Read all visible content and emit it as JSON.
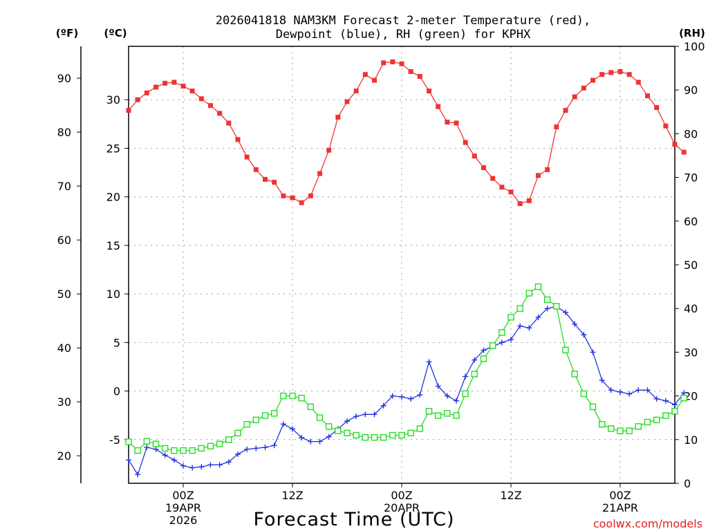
{
  "chart_data": {
    "type": "line",
    "title": [
      "2026041818 NAM3KM Forecast 2-meter Temperature (red),",
      "Dewpoint (blue), RH (green) for KPHX"
    ],
    "xlabel": "Forecast Time (UTC)",
    "watermark": "coolwx.com/models",
    "x_unit": "hours since 2026-04-18 18Z",
    "xlim": [
      0,
      60
    ],
    "x_ticks": [
      {
        "hour": 6,
        "lines": [
          "00Z",
          "19APR",
          "2026"
        ]
      },
      {
        "hour": 18,
        "lines": [
          "12Z"
        ]
      },
      {
        "hour": 30,
        "lines": [
          "00Z",
          "20APR"
        ]
      },
      {
        "hour": 42,
        "lines": [
          "12Z"
        ]
      },
      {
        "hour": 54,
        "lines": [
          "00Z",
          "21APR"
        ]
      }
    ],
    "axes": {
      "celsius": {
        "label": "(ºC)",
        "range": [
          -9.5,
          35.5
        ],
        "ticks": [
          -5,
          0,
          5,
          10,
          15,
          20,
          25,
          30
        ]
      },
      "fahrenheit": {
        "label": "(ºF)",
        "range": [
          14.9,
          95.9
        ],
        "ticks": [
          20,
          30,
          40,
          50,
          60,
          70,
          80,
          90
        ]
      },
      "rh": {
        "label": "(RH)",
        "range": [
          0,
          100
        ],
        "ticks": [
          0,
          10,
          20,
          30,
          40,
          50,
          60,
          70,
          80,
          90,
          100
        ]
      }
    },
    "series": [
      {
        "name": "Temperature (°C)",
        "color": "#ee3333",
        "marker": "filled-square",
        "axis": "celsius",
        "values": [
          28.9,
          30.0,
          30.7,
          31.3,
          31.7,
          31.8,
          31.4,
          30.9,
          30.1,
          29.4,
          28.6,
          27.6,
          25.9,
          24.1,
          22.8,
          21.8,
          21.5,
          20.1,
          19.9,
          19.4,
          20.1,
          22.4,
          24.8,
          28.2,
          29.8,
          30.9,
          32.6,
          32.0,
          33.8,
          33.9,
          33.7,
          32.9,
          32.4,
          30.9,
          29.3,
          27.7,
          27.6,
          25.6,
          24.2,
          23.0,
          21.9,
          21.0,
          20.5,
          19.3,
          19.6,
          22.2,
          22.8,
          27.2,
          28.9,
          30.3,
          31.2,
          32.0,
          32.6,
          32.8,
          32.9,
          32.6,
          31.8,
          30.4,
          29.2,
          27.3,
          25.4,
          24.6
        ]
      },
      {
        "name": "Dewpoint (°C)",
        "color": "#2233dd",
        "marker": "plus",
        "axis": "celsius",
        "values": [
          -7.1,
          -8.6,
          -5.8,
          -6.0,
          -6.6,
          -7.1,
          -7.7,
          -7.9,
          -7.8,
          -7.6,
          -7.6,
          -7.3,
          -6.5,
          -6.0,
          -5.9,
          -5.8,
          -5.6,
          -3.4,
          -3.9,
          -4.8,
          -5.2,
          -5.2,
          -4.7,
          -3.9,
          -3.1,
          -2.6,
          -2.4,
          -2.4,
          -1.5,
          -0.5,
          -0.6,
          -0.8,
          -0.4,
          3.0,
          0.5,
          -0.5,
          -1.0,
          1.5,
          3.2,
          4.2,
          4.6,
          5.0,
          5.3,
          6.7,
          6.5,
          7.6,
          8.5,
          8.7,
          8.1,
          6.9,
          5.8,
          4.0,
          1.1,
          0.1,
          -0.1,
          -0.3,
          0.1,
          0.1,
          -0.8,
          -1.0,
          -1.4,
          -0.2
        ]
      },
      {
        "name": "Relative Humidity (%)",
        "color": "#22dd22",
        "marker": "open-square",
        "axis": "rh",
        "values": [
          9.5,
          7.5,
          9.6,
          9.0,
          8.0,
          7.5,
          7.5,
          7.5,
          8.0,
          8.5,
          9.0,
          10.0,
          11.5,
          13.5,
          14.5,
          15.5,
          16.0,
          20.0,
          20.0,
          19.5,
          17.5,
          15.0,
          13.0,
          12.0,
          11.5,
          11.0,
          10.5,
          10.5,
          10.5,
          11.0,
          11.0,
          11.5,
          12.5,
          16.5,
          15.5,
          16.0,
          15.5,
          20.5,
          25.0,
          28.5,
          31.5,
          34.5,
          38.0,
          40.0,
          43.5,
          45.0,
          42.0,
          40.5,
          30.5,
          25.0,
          20.5,
          17.5,
          13.5,
          12.5,
          12.0,
          12.0,
          13.0,
          14.0,
          14.5,
          15.5,
          16.5,
          19.5
        ]
      }
    ]
  }
}
